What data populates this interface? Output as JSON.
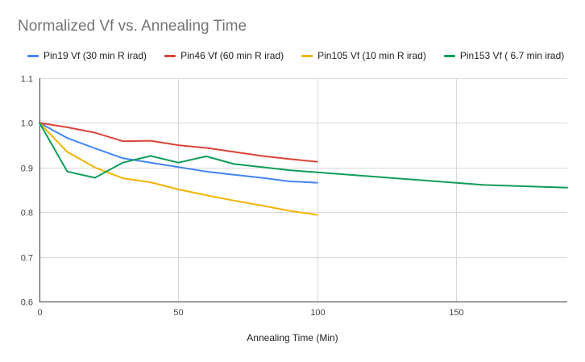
{
  "chart_data": {
    "type": "line",
    "title": "Normalized Vf vs. Annealing Time",
    "xlabel": "Annealing Time (Min)",
    "ylabel": "",
    "xlim": [
      0,
      190
    ],
    "ylim": [
      0.6,
      1.1
    ],
    "x_ticks": [
      0,
      50,
      100,
      150
    ],
    "y_ticks": [
      0.6,
      0.7,
      0.8,
      0.9,
      1.0,
      1.1
    ],
    "x_tick_labels": [
      "0",
      "50",
      "100",
      "150"
    ],
    "y_tick_labels": [
      "0.6",
      "0.7",
      "0.8",
      "0.9",
      "1.0",
      "1.1"
    ],
    "grid": true,
    "legend_position": "top",
    "series": [
      {
        "name": "Pin19 Vf (30 min R irad)",
        "color": "#4285f4",
        "x": [
          0,
          10,
          20,
          30,
          40,
          50,
          60,
          70,
          80,
          90,
          100
        ],
        "y": [
          1.0,
          0.966,
          0.943,
          0.921,
          0.911,
          0.901,
          0.891,
          0.884,
          0.877,
          0.869,
          0.866
        ]
      },
      {
        "name": "Pin46 Vf (60 min R irad)",
        "color": "#db4437",
        "x": [
          0,
          10,
          20,
          30,
          40,
          50,
          60,
          70,
          80,
          90,
          100
        ],
        "y": [
          1.0,
          0.99,
          0.978,
          0.959,
          0.96,
          0.95,
          0.944,
          0.935,
          0.926,
          0.919,
          0.913
        ]
      },
      {
        "name": "Pin105 Vf (10 min R irad)",
        "color": "#f4b400",
        "x": [
          0,
          10,
          20,
          30,
          40,
          50,
          60,
          70,
          80,
          90,
          100
        ],
        "y": [
          1.0,
          0.935,
          0.9,
          0.876,
          0.867,
          0.851,
          0.838,
          0.826,
          0.815,
          0.803,
          0.794
        ]
      },
      {
        "name": "Pin153 Vf ( 6.7 min irad)",
        "color": "#0f9d58",
        "x": [
          0,
          10,
          20,
          30,
          40,
          50,
          60,
          70,
          90,
          160,
          190
        ],
        "y": [
          1.0,
          0.891,
          0.877,
          0.911,
          0.926,
          0.911,
          0.925,
          0.908,
          0.894,
          0.861,
          0.855
        ]
      }
    ]
  }
}
